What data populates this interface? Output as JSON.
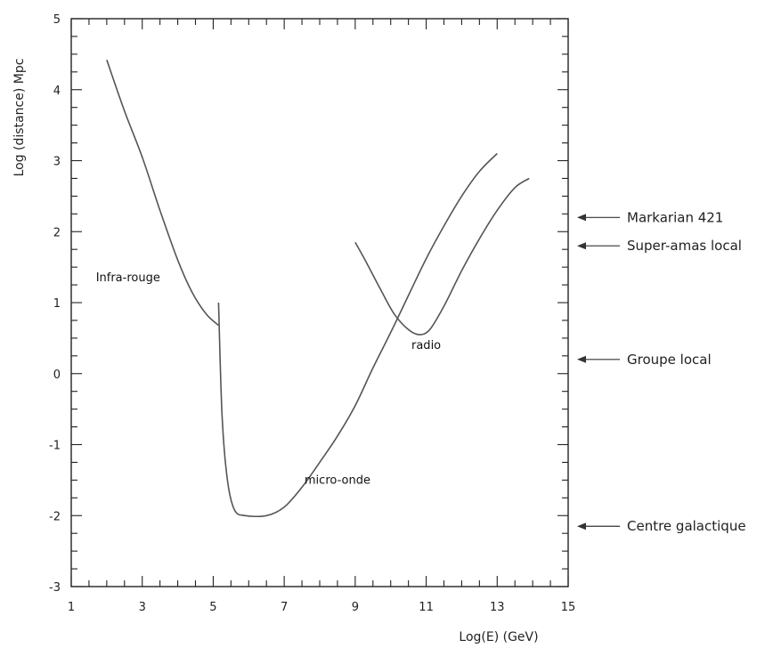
{
  "chart_data": {
    "type": "line",
    "xlabel": "Log(E) (GeV)",
    "ylabel": "Log (distance)  Mpc",
    "xlim": [
      1,
      15
    ],
    "ylim": [
      -3,
      5
    ],
    "x_ticks": [
      1,
      3,
      5,
      7,
      9,
      11,
      13,
      15
    ],
    "y_ticks": [
      -3,
      -2,
      -1,
      0,
      1,
      2,
      3,
      4,
      5
    ],
    "grid": false,
    "series": [
      {
        "name": "Infra-rouge",
        "points": [
          [
            2.0,
            4.42
          ],
          [
            2.5,
            3.7
          ],
          [
            3.0,
            3.05
          ],
          [
            3.5,
            2.3
          ],
          [
            4.0,
            1.6
          ],
          [
            4.4,
            1.15
          ],
          [
            4.8,
            0.84
          ],
          [
            5.15,
            0.68
          ]
        ]
      },
      {
        "name": "micro-onde",
        "points": [
          [
            5.15,
            1.0
          ],
          [
            5.25,
            -0.6
          ],
          [
            5.4,
            -1.5
          ],
          [
            5.6,
            -1.92
          ],
          [
            5.9,
            -2.0
          ],
          [
            6.5,
            -2.0
          ],
          [
            7.0,
            -1.88
          ],
          [
            7.5,
            -1.6
          ],
          [
            8.0,
            -1.25
          ],
          [
            8.5,
            -0.88
          ],
          [
            9.0,
            -0.45
          ],
          [
            9.5,
            0.08
          ],
          [
            10.0,
            0.58
          ],
          [
            10.5,
            1.1
          ],
          [
            11.0,
            1.62
          ],
          [
            11.5,
            2.08
          ],
          [
            12.0,
            2.5
          ],
          [
            12.5,
            2.85
          ],
          [
            13.0,
            3.1
          ]
        ]
      },
      {
        "name": "radio",
        "points": [
          [
            9.0,
            1.85
          ],
          [
            9.3,
            1.58
          ],
          [
            9.7,
            1.2
          ],
          [
            10.1,
            0.84
          ],
          [
            10.5,
            0.62
          ],
          [
            10.8,
            0.55
          ],
          [
            11.1,
            0.62
          ],
          [
            11.5,
            0.95
          ],
          [
            12.0,
            1.45
          ],
          [
            12.5,
            1.9
          ],
          [
            13.0,
            2.3
          ],
          [
            13.5,
            2.62
          ],
          [
            13.9,
            2.75
          ]
        ]
      }
    ],
    "annotations": [
      {
        "text": "Infra-rouge",
        "x": 2.6,
        "y": 1.3
      },
      {
        "text": "radio",
        "x": 11.0,
        "y": 0.35
      },
      {
        "text": "micro-onde",
        "x": 8.5,
        "y": -1.55
      }
    ],
    "reference_marks": [
      {
        "label": "Markarian 421",
        "y": 2.2
      },
      {
        "label": "Super-amas local",
        "y": 1.8
      },
      {
        "label": "Groupe local",
        "y": 0.2
      },
      {
        "label": "Centre galactique",
        "y": -2.15
      }
    ]
  }
}
